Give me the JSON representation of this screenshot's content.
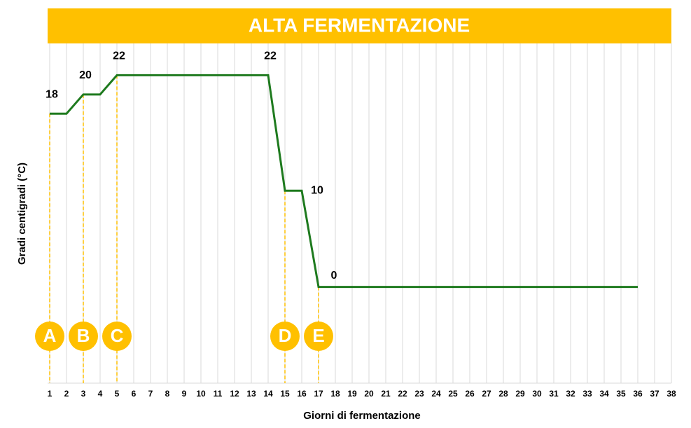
{
  "chart_data": {
    "type": "line",
    "title": "ALTA FERMENTAZIONE",
    "x_label": "Giorni di fermentazione",
    "y_label": "Gradi centigradi (°C)",
    "x": [
      1,
      2,
      3,
      4,
      5,
      6,
      7,
      8,
      9,
      10,
      11,
      12,
      13,
      14,
      15,
      16,
      17,
      18,
      19,
      20,
      21,
      22,
      23,
      24,
      25,
      26,
      27,
      28,
      29,
      30,
      31,
      32,
      33,
      34,
      35,
      36
    ],
    "values": [
      18,
      18,
      20,
      20,
      22,
      22,
      22,
      22,
      22,
      22,
      22,
      22,
      22,
      22,
      10,
      10,
      0,
      0,
      0,
      0,
      0,
      0,
      0,
      0,
      0,
      0,
      0,
      0,
      0,
      0,
      0,
      0,
      0,
      0,
      0,
      0
    ],
    "value_labels": [
      "18",
      null,
      "20",
      null,
      "22",
      null,
      null,
      null,
      null,
      null,
      null,
      null,
      null,
      "22",
      null,
      "10",
      "0",
      null,
      null,
      null,
      null,
      null,
      null,
      null,
      null,
      null,
      null,
      null,
      null,
      null,
      null,
      null,
      null,
      null,
      null,
      null
    ],
    "color": "#1e7a1e",
    "xlim": [
      1,
      38
    ],
    "xticks": [
      1,
      2,
      3,
      4,
      5,
      6,
      7,
      8,
      9,
      10,
      11,
      12,
      13,
      14,
      15,
      16,
      17,
      18,
      19,
      20,
      21,
      22,
      23,
      24,
      25,
      26,
      27,
      28,
      29,
      30,
      31,
      32,
      33,
      34,
      35,
      36,
      37,
      38
    ],
    "ylim": [
      -10,
      25.3
    ],
    "grid": true,
    "marker_color": "#ffc000",
    "markers": [
      {
        "x": 1,
        "label": "A"
      },
      {
        "x": 3,
        "label": "B"
      },
      {
        "x": 5,
        "label": "C"
      },
      {
        "x": 15,
        "label": "D"
      },
      {
        "x": 17,
        "label": "E"
      }
    ]
  }
}
